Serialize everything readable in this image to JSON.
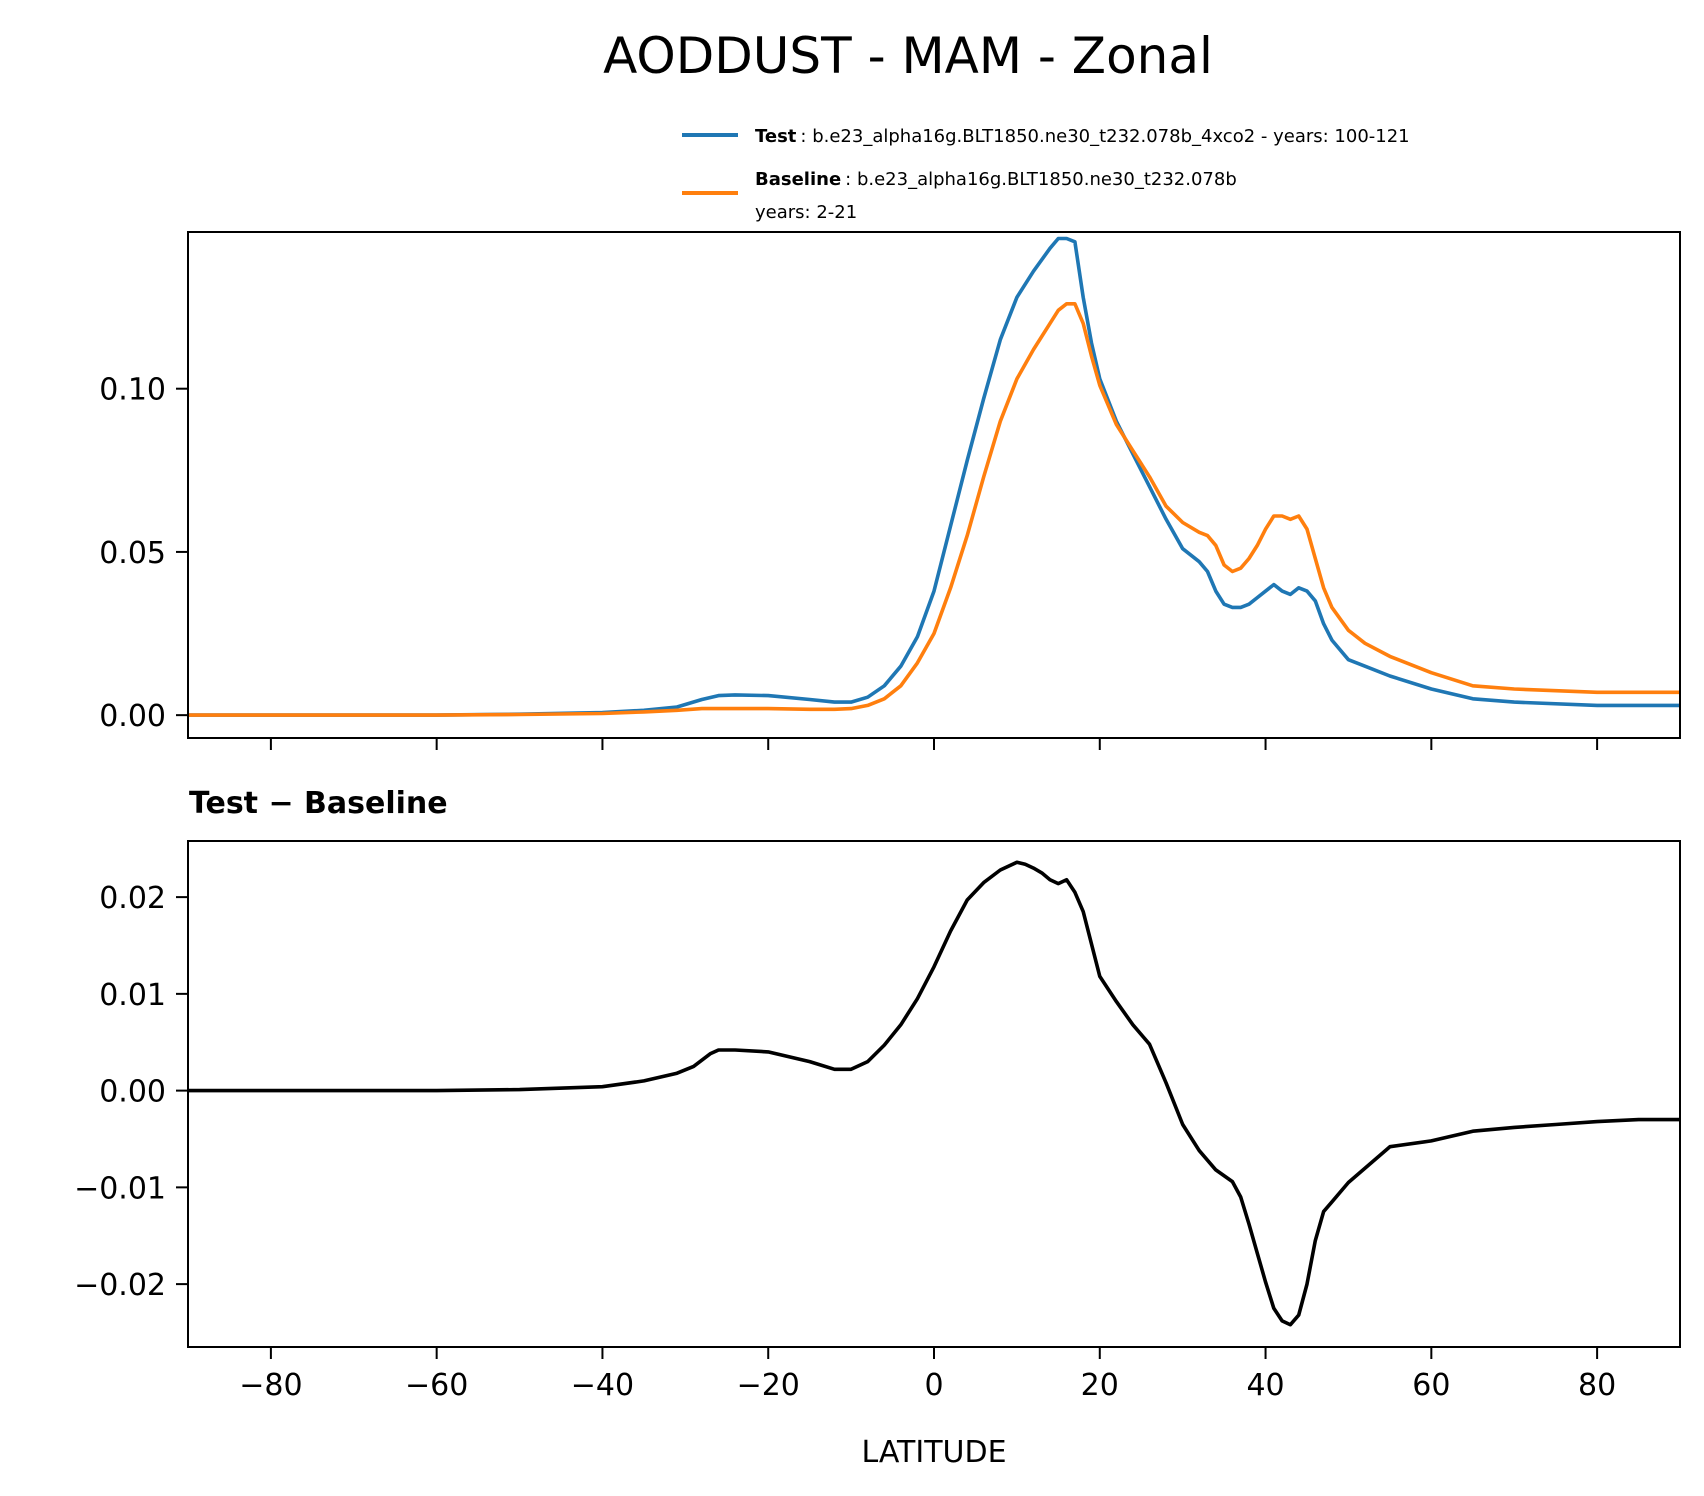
{
  "figure": {
    "title": "AODDUST - MAM - Zonal",
    "diff_title": "Test − Baseline"
  },
  "legend": {
    "test_name": "Test",
    "test_desc": ": b.e23_alpha16g.BLT1850.ne30_t232.078b_4xco2 - years: 100-121",
    "base_name": "Baseline",
    "base_desc": ": b.e23_alpha16g.BLT1850.ne30_t232.078b",
    "base_desc2": "years: 2-21"
  },
  "colors": {
    "test": "#1f77b4",
    "baseline": "#ff7f0e",
    "difference": "#000000"
  },
  "chart_data": [
    {
      "type": "line",
      "xlabel": "",
      "ylabel": "",
      "xlim": [
        -90,
        90
      ],
      "ylim": [
        -0.007,
        0.148
      ],
      "xticks": [
        -80,
        -60,
        -40,
        -20,
        0,
        20,
        40,
        60,
        80
      ],
      "yticks": [
        0.0,
        0.05,
        0.1
      ],
      "ytick_labels": [
        "0.00",
        "0.05",
        "0.10"
      ],
      "x": [
        -90,
        -80,
        -60,
        -50,
        -40,
        -35,
        -31,
        -28,
        -26,
        -24,
        -20,
        -15,
        -12,
        -10,
        -8,
        -6,
        -4,
        -2,
        0,
        2,
        4,
        6,
        8,
        10,
        12,
        14,
        15,
        16,
        17,
        18,
        19,
        20,
        22,
        24,
        26,
        28,
        30,
        32,
        33,
        34,
        35,
        36,
        37,
        38,
        39,
        40,
        41,
        42,
        43,
        44,
        45,
        46,
        47,
        48,
        50,
        52,
        55,
        60,
        65,
        70,
        80,
        90
      ],
      "series": [
        {
          "name": "Test",
          "color": "#1f77b4",
          "values": [
            0.0,
            0.0,
            0.0,
            0.0003,
            0.0008,
            0.0015,
            0.0025,
            0.0048,
            0.006,
            0.0062,
            0.006,
            0.0048,
            0.004,
            0.004,
            0.0055,
            0.009,
            0.015,
            0.024,
            0.038,
            0.058,
            0.078,
            0.097,
            0.115,
            0.128,
            0.136,
            0.143,
            0.146,
            0.146,
            0.145,
            0.128,
            0.114,
            0.103,
            0.09,
            0.08,
            0.07,
            0.06,
            0.051,
            0.047,
            0.044,
            0.038,
            0.034,
            0.033,
            0.033,
            0.034,
            0.036,
            0.038,
            0.04,
            0.038,
            0.037,
            0.039,
            0.038,
            0.035,
            0.028,
            0.023,
            0.017,
            0.015,
            0.012,
            0.008,
            0.005,
            0.004,
            0.003,
            0.003
          ]
        },
        {
          "name": "Baseline",
          "color": "#ff7f0e",
          "values": [
            0.0,
            0.0,
            0.0,
            0.0002,
            0.0005,
            0.001,
            0.0015,
            0.002,
            0.002,
            0.002,
            0.002,
            0.0018,
            0.0018,
            0.002,
            0.003,
            0.005,
            0.009,
            0.016,
            0.025,
            0.039,
            0.055,
            0.073,
            0.09,
            0.103,
            0.112,
            0.12,
            0.124,
            0.126,
            0.126,
            0.12,
            0.11,
            0.101,
            0.089,
            0.081,
            0.073,
            0.064,
            0.059,
            0.056,
            0.055,
            0.052,
            0.046,
            0.044,
            0.045,
            0.048,
            0.052,
            0.057,
            0.061,
            0.061,
            0.06,
            0.061,
            0.057,
            0.048,
            0.039,
            0.033,
            0.026,
            0.022,
            0.018,
            0.013,
            0.009,
            0.008,
            0.007,
            0.007
          ]
        }
      ]
    },
    {
      "type": "line",
      "title": "Test − Baseline",
      "xlabel": "LATITUDE",
      "ylabel": "",
      "xlim": [
        -90,
        90
      ],
      "ylim": [
        -0.0265,
        0.0258
      ],
      "xticks": [
        -80,
        -60,
        -40,
        -20,
        0,
        20,
        40,
        60,
        80
      ],
      "yticks": [
        -0.02,
        -0.01,
        0.0,
        0.01,
        0.02
      ],
      "ytick_labels": [
        "−0.02",
        "−0.01",
        "0.00",
        "0.01",
        "0.02"
      ],
      "x": [
        -90,
        -60,
        -50,
        -40,
        -35,
        -31,
        -29,
        -27,
        -26,
        -24,
        -20,
        -15,
        -12,
        -10,
        -8,
        -6,
        -4,
        -2,
        0,
        2,
        4,
        6,
        8,
        10,
        11,
        12,
        13,
        14,
        15,
        16,
        17,
        18,
        20,
        22,
        24,
        26,
        28,
        30,
        32,
        34,
        36,
        37,
        38,
        39,
        40,
        41,
        42,
        43,
        44,
        45,
        46,
        47,
        48,
        50,
        55,
        60,
        65,
        70,
        75,
        80,
        85,
        90
      ],
      "series": [
        {
          "name": "Test − Baseline",
          "color": "#000000",
          "values": [
            0.0,
            0.0,
            0.0001,
            0.0004,
            0.001,
            0.0018,
            0.0025,
            0.0038,
            0.0042,
            0.0042,
            0.004,
            0.003,
            0.0022,
            0.0022,
            0.003,
            0.0047,
            0.0068,
            0.0095,
            0.0128,
            0.0165,
            0.0197,
            0.0215,
            0.0228,
            0.0236,
            0.0234,
            0.023,
            0.0225,
            0.0218,
            0.0214,
            0.0218,
            0.0205,
            0.0185,
            0.0118,
            0.0092,
            0.0068,
            0.0048,
            0.0008,
            -0.0035,
            -0.0062,
            -0.0082,
            -0.0094,
            -0.011,
            -0.0138,
            -0.0168,
            -0.0198,
            -0.0225,
            -0.0238,
            -0.0242,
            -0.0232,
            -0.02,
            -0.0155,
            -0.0125,
            -0.0115,
            -0.0095,
            -0.0058,
            -0.0052,
            -0.0042,
            -0.0038,
            -0.0035,
            -0.0032,
            -0.003,
            -0.003
          ]
        }
      ]
    }
  ]
}
